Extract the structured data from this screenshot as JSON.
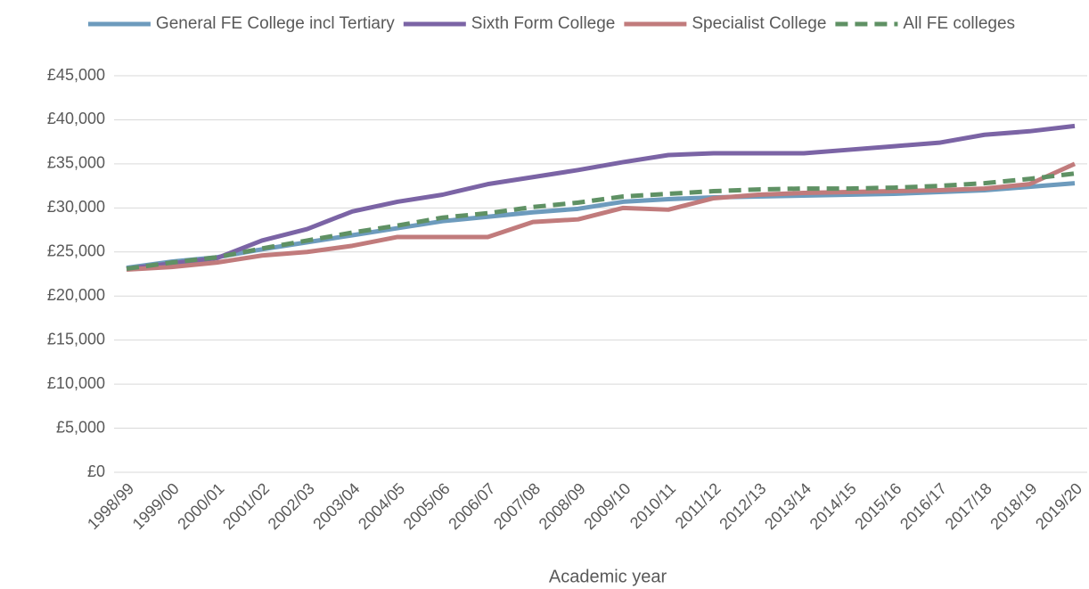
{
  "chart_data": {
    "type": "line",
    "x_label": "Academic year",
    "categories": [
      "1998/99",
      "1999/00",
      "2000/01",
      "2001/02",
      "2002/03",
      "2003/04",
      "2004/05",
      "2005/06",
      "2006/07",
      "2007/08",
      "2008/09",
      "2009/10",
      "2010/11",
      "2011/12",
      "2012/13",
      "2013/14",
      "2014/15",
      "2015/16",
      "2016/17",
      "2017/18",
      "2018/19",
      "2019/20"
    ],
    "series": [
      {
        "name": "General FE College incl Tertiary",
        "color": "#6d9bbd",
        "values": [
          23200,
          23900,
          24400,
          25300,
          26100,
          26900,
          27700,
          28500,
          29000,
          29500,
          29900,
          30700,
          31000,
          31200,
          31300,
          31400,
          31500,
          31600,
          31800,
          32000,
          32400,
          32800
        ]
      },
      {
        "name": "Sixth Form College",
        "color": "#7b64a5",
        "values": [
          23100,
          23700,
          24300,
          26300,
          27600,
          29600,
          30700,
          31500,
          32700,
          33500,
          34300,
          35200,
          36000,
          36200,
          36200,
          36200,
          36600,
          37000,
          37400,
          38300,
          38700,
          39300
        ]
      },
      {
        "name": "Specialist College",
        "color": "#c17b7c",
        "values": [
          23000,
          23300,
          23800,
          24600,
          25000,
          25700,
          26700,
          26700,
          26700,
          28400,
          28700,
          30000,
          29800,
          31100,
          31500,
          31700,
          31800,
          31900,
          32000,
          32200,
          32700,
          35000
        ]
      },
      {
        "name": "All FE colleges",
        "color": "#5f9164",
        "dashed": true,
        "values": [
          23100,
          23800,
          24400,
          25400,
          26300,
          27200,
          28000,
          28900,
          29400,
          30100,
          30600,
          31300,
          31600,
          31900,
          32100,
          32200,
          32200,
          32300,
          32500,
          32800,
          33300,
          33900
        ]
      }
    ],
    "ylim": [
      0,
      45000
    ],
    "yticks": [
      {
        "value": 0,
        "label": "£0"
      },
      {
        "value": 5000,
        "label": "£5,000"
      },
      {
        "value": 10000,
        "label": "£10,000"
      },
      {
        "value": 15000,
        "label": "£15,000"
      },
      {
        "value": 20000,
        "label": "£20,000"
      },
      {
        "value": 25000,
        "label": "£25,000"
      },
      {
        "value": 30000,
        "label": "£30,000"
      },
      {
        "value": 35000,
        "label": "£35,000"
      },
      {
        "value": 40000,
        "label": "£40,000"
      },
      {
        "value": 45000,
        "label": "£45,000"
      }
    ],
    "grid": true,
    "legend": "top"
  }
}
